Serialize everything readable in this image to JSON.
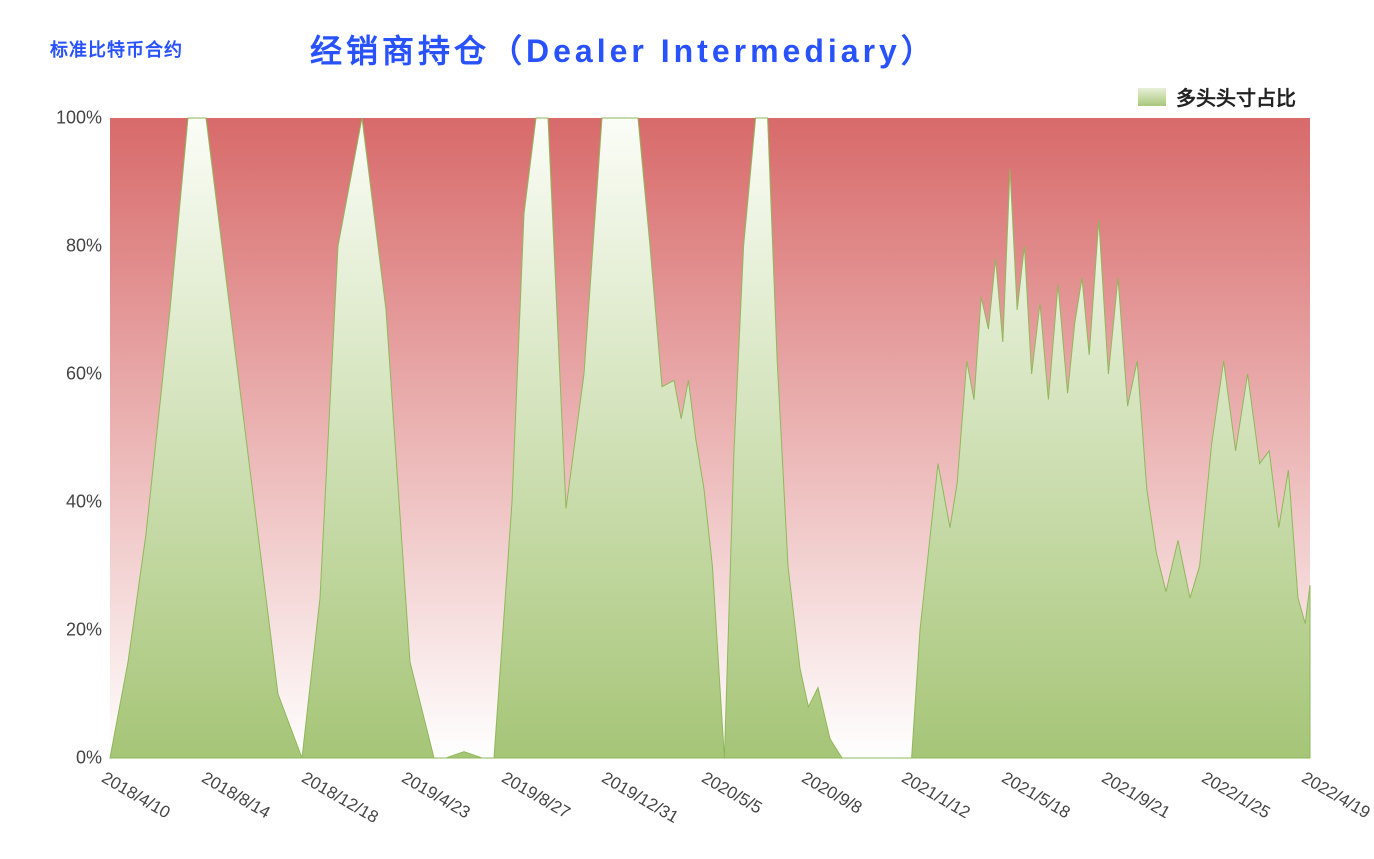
{
  "header": {
    "subtitle": "标准比特币合约",
    "title": "经销商持仓（Dealer Intermediary）"
  },
  "legend": {
    "label": "多头头寸占比",
    "swatch_gradient_top": "#e8f0d8",
    "swatch_gradient_bottom": "#a9c77a"
  },
  "chart": {
    "type": "area",
    "background_color": "#ffffff",
    "plot_bg_gradient_top": "#d86a6a",
    "plot_bg_gradient_bottom": "#ffffff",
    "area_gradient_top": "#fbfdf7",
    "area_gradient_bottom": "#a6c577",
    "area_stroke": "#8fb85a",
    "ylim": [
      0,
      100
    ],
    "ytick_step": 20,
    "ytick_suffix": "%",
    "y_font_size": 18,
    "x_font_size": 17,
    "x_tick_rotation_deg": 30,
    "x_labels": [
      "2018/4/10",
      "2018/8/14",
      "2018/12/18",
      "2019/4/23",
      "2019/8/27",
      "2019/12/31",
      "2020/5/5",
      "2020/9/8",
      "2021/1/12",
      "2021/5/18",
      "2021/9/21",
      "2022/1/25",
      "2022/4/19"
    ],
    "series": {
      "name": "多头头寸占比",
      "x": [
        0.0,
        0.015,
        0.03,
        0.05,
        0.065,
        0.08,
        0.1,
        0.12,
        0.14,
        0.16,
        0.175,
        0.19,
        0.21,
        0.23,
        0.25,
        0.27,
        0.28,
        0.295,
        0.31,
        0.32,
        0.335,
        0.345,
        0.355,
        0.365,
        0.38,
        0.395,
        0.41,
        0.425,
        0.44,
        0.45,
        0.46,
        0.47,
        0.476,
        0.482,
        0.488,
        0.495,
        0.502,
        0.512,
        0.52,
        0.528,
        0.538,
        0.548,
        0.556,
        0.565,
        0.575,
        0.582,
        0.59,
        0.6,
        0.61,
        0.62,
        0.64,
        0.66,
        0.668,
        0.675,
        0.69,
        0.7,
        0.706,
        0.714,
        0.72,
        0.726,
        0.732,
        0.738,
        0.744,
        0.75,
        0.756,
        0.762,
        0.768,
        0.775,
        0.782,
        0.79,
        0.798,
        0.804,
        0.81,
        0.816,
        0.824,
        0.832,
        0.84,
        0.848,
        0.856,
        0.864,
        0.872,
        0.88,
        0.89,
        0.9,
        0.908,
        0.918,
        0.928,
        0.938,
        0.948,
        0.958,
        0.966,
        0.974,
        0.982,
        0.99,
        0.996,
        1.0
      ],
      "y": [
        0,
        15,
        35,
        70,
        100,
        100,
        70,
        40,
        10,
        0,
        25,
        80,
        100,
        70,
        15,
        0,
        0,
        1,
        0,
        0,
        40,
        85,
        100,
        100,
        39,
        60,
        100,
        100,
        100,
        80,
        58,
        59,
        53,
        59,
        50,
        42,
        30,
        0,
        48,
        80,
        100,
        100,
        62,
        30,
        14,
        8,
        11,
        3,
        0,
        0,
        0,
        0,
        0,
        20,
        46,
        36,
        43,
        62,
        56,
        72,
        67,
        78,
        65,
        92,
        70,
        80,
        60,
        71,
        56,
        74,
        57,
        68,
        75,
        63,
        84,
        60,
        75,
        55,
        62,
        42,
        32,
        26,
        34,
        25,
        30,
        49,
        62,
        48,
        60,
        46,
        48,
        36,
        45,
        25,
        21,
        27
      ]
    }
  }
}
